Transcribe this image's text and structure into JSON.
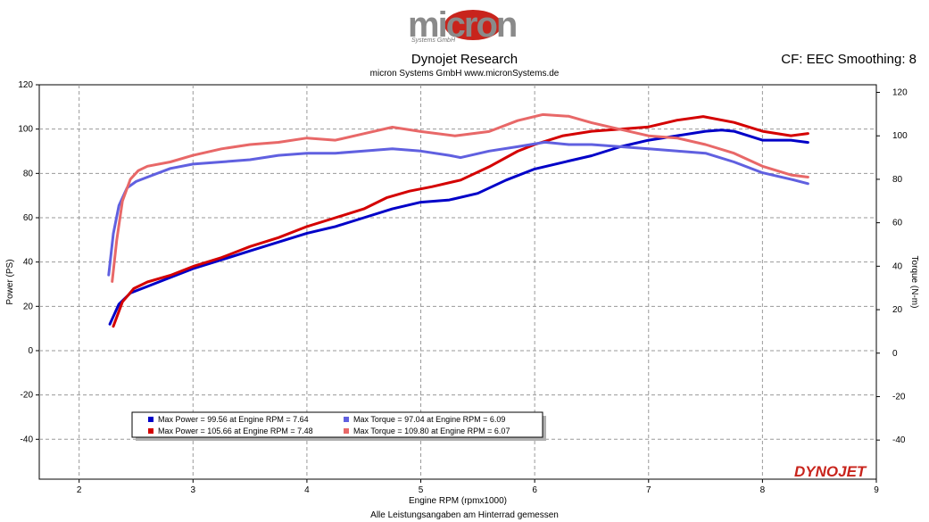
{
  "header": {
    "logo_text": "micron",
    "logo_subtext": "Systems GmbH",
    "title": "Dynojet Research",
    "subtitle": "micron Systems GmbH  www.micronSystems.de",
    "correction_label": "CF: EEC Smoothing: 8",
    "footer_note": "Alle Leistungsangaben am Hinterrad gemessen",
    "brand_mark": "DYNOJET"
  },
  "chart_data": {
    "type": "line",
    "xlabel": "Engine RPM (rpmx1000)",
    "ylabel": "Power (PS)",
    "y2label": "Torque (N-m)",
    "xlim": [
      1.65,
      9
    ],
    "ylim": [
      -58,
      120
    ],
    "y2lim": [
      -58,
      123.5
    ],
    "xticks": [
      "2",
      "3",
      "4",
      "5",
      "6",
      "7",
      "8",
      "9"
    ],
    "yticks": [
      "120",
      "100",
      "80",
      "60",
      "40",
      "20",
      "0",
      "-20",
      "-40"
    ],
    "y2ticks": [
      "120",
      "100",
      "80",
      "60",
      "40",
      "20",
      "0",
      "-20",
      "-40"
    ],
    "grid": true,
    "legend_position": "bottom-left",
    "series": [
      {
        "name": "Max Power = 99.56 at Engine RPM = 7.64",
        "axis": "left",
        "color": "#0000c8",
        "x": [
          2.27,
          2.35,
          2.45,
          2.6,
          2.8,
          3.0,
          3.25,
          3.5,
          3.75,
          4.0,
          4.25,
          4.5,
          4.75,
          5.0,
          5.25,
          5.5,
          5.75,
          6.0,
          6.25,
          6.5,
          6.75,
          7.0,
          7.25,
          7.5,
          7.64,
          7.75,
          8.0,
          8.25,
          8.4
        ],
        "y": [
          12,
          21,
          26,
          29,
          33,
          37,
          41,
          45,
          49,
          53,
          56,
          60,
          64,
          67,
          68,
          71,
          77,
          82,
          85,
          88,
          92,
          95,
          97,
          99,
          99.56,
          99,
          95,
          95,
          94
        ]
      },
      {
        "name": "Max Power = 105.66 at Engine RPM = 7.48",
        "axis": "left",
        "color": "#d40000",
        "x": [
          2.3,
          2.38,
          2.48,
          2.6,
          2.8,
          3.0,
          3.25,
          3.5,
          3.75,
          4.0,
          4.25,
          4.5,
          4.7,
          4.9,
          5.1,
          5.35,
          5.6,
          5.85,
          6.0,
          6.25,
          6.5,
          6.75,
          7.0,
          7.25,
          7.48,
          7.75,
          8.0,
          8.25,
          8.4
        ],
        "y": [
          11,
          22,
          28,
          31,
          34,
          38,
          42,
          47,
          51,
          56,
          60,
          64,
          69,
          72,
          74,
          77,
          83,
          90,
          93,
          97,
          99,
          100,
          101,
          104,
          105.66,
          103,
          99,
          97,
          98
        ]
      },
      {
        "name": "Max Torque = 97.04 at Engine RPM = 6.09",
        "axis": "right",
        "color": "#6060e0",
        "x": [
          2.26,
          2.3,
          2.35,
          2.42,
          2.5,
          2.6,
          2.8,
          3.0,
          3.25,
          3.5,
          3.75,
          4.0,
          4.25,
          4.5,
          4.75,
          5.0,
          5.25,
          5.35,
          5.6,
          5.85,
          6.09,
          6.3,
          6.5,
          6.75,
          7.0,
          7.25,
          7.5,
          7.75,
          8.0,
          8.25,
          8.4
        ],
        "y": [
          36,
          55,
          68,
          76,
          79,
          81,
          85,
          87,
          88,
          89,
          91,
          92,
          92,
          93,
          94,
          93,
          91,
          90,
          93,
          95,
          97.04,
          96,
          96,
          95,
          94,
          93,
          92,
          88,
          83,
          80,
          78
        ]
      },
      {
        "name": "Max Torque = 109.80 at Engine RPM = 6.07",
        "axis": "right",
        "color": "#e86868",
        "x": [
          2.29,
          2.33,
          2.38,
          2.45,
          2.52,
          2.6,
          2.8,
          3.0,
          3.25,
          3.5,
          3.75,
          4.0,
          4.25,
          4.5,
          4.75,
          5.0,
          5.3,
          5.6,
          5.85,
          6.07,
          6.3,
          6.5,
          6.75,
          7.0,
          7.25,
          7.5,
          7.75,
          8.0,
          8.25,
          8.4
        ],
        "y": [
          33,
          52,
          70,
          80,
          84,
          86,
          88,
          91,
          94,
          96,
          97,
          99,
          98,
          101,
          104,
          102,
          100,
          102,
          107,
          109.8,
          109,
          106,
          103,
          100,
          99,
          96,
          92,
          86,
          82,
          81
        ]
      }
    ]
  }
}
